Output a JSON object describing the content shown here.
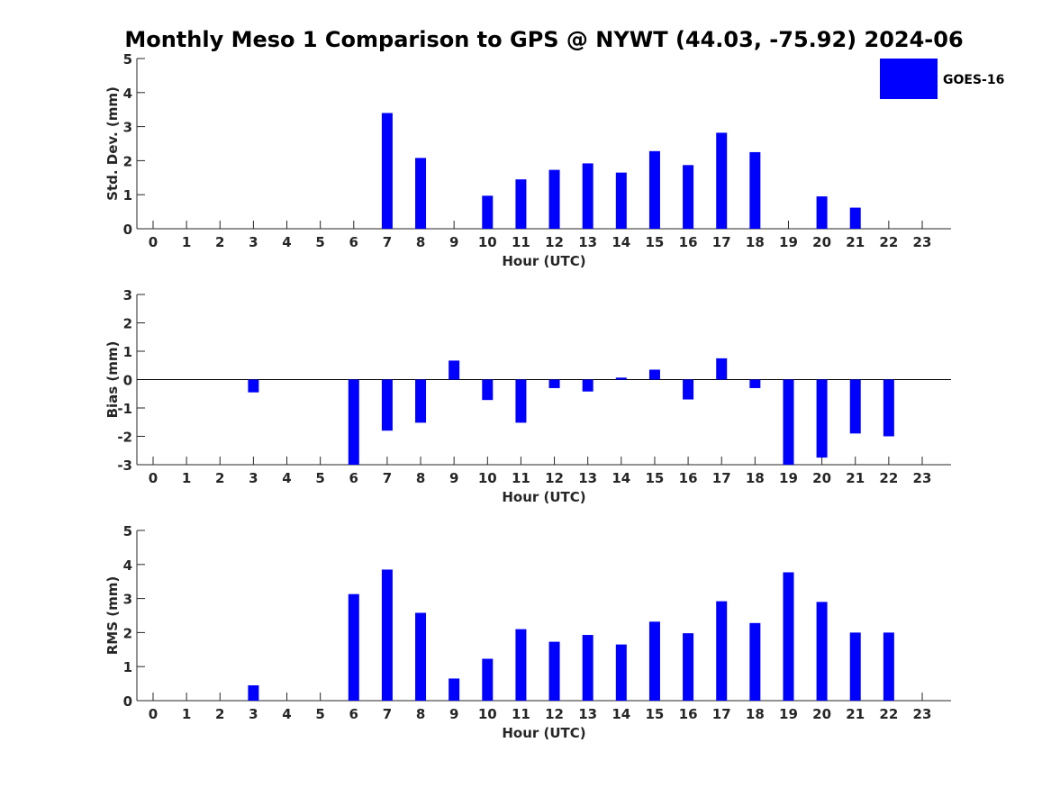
{
  "title": "Monthly Meso 1 Comparison to GPS @ NYWT (44.03, -75.92) 2024-06",
  "legend": {
    "label": "GOES-16",
    "color": "#0000ff",
    "placement": "top-right"
  },
  "chart_data": [
    {
      "type": "bar",
      "ylabel": "Std. Dev. (mm)",
      "xlabel": "Hour (UTC)",
      "ylim": [
        0,
        5
      ],
      "yticks": [
        0,
        1,
        2,
        3,
        4,
        5
      ],
      "categories": [
        "0",
        "1",
        "2",
        "3",
        "4",
        "5",
        "6",
        "7",
        "8",
        "9",
        "10",
        "11",
        "12",
        "13",
        "14",
        "15",
        "16",
        "17",
        "18",
        "19",
        "20",
        "21",
        "22",
        "23"
      ],
      "values": [
        0,
        0,
        0,
        0,
        0,
        0,
        0,
        3.4,
        2.08,
        0,
        0.97,
        1.45,
        1.73,
        1.92,
        1.65,
        2.28,
        1.87,
        2.82,
        2.25,
        0,
        0.95,
        0.62,
        0,
        0
      ],
      "color": "#0000ff",
      "grid": false
    },
    {
      "type": "bar",
      "ylabel": "Bias (mm)",
      "xlabel": "Hour (UTC)",
      "ylim": [
        -3,
        3
      ],
      "yticks": [
        -3,
        -2,
        -1,
        0,
        1,
        2,
        3
      ],
      "categories": [
        "0",
        "1",
        "2",
        "3",
        "4",
        "5",
        "6",
        "7",
        "8",
        "9",
        "10",
        "11",
        "12",
        "13",
        "14",
        "15",
        "16",
        "17",
        "18",
        "19",
        "20",
        "21",
        "22",
        "23"
      ],
      "values": [
        0,
        0,
        0,
        -0.45,
        0,
        0,
        -3.2,
        -1.8,
        -1.52,
        0.67,
        -0.72,
        -1.52,
        -0.3,
        -0.42,
        0.07,
        0.35,
        -0.7,
        0.75,
        -0.3,
        -3.2,
        -2.75,
        -1.9,
        -2.0,
        0
      ],
      "color": "#0000ff",
      "grid": false
    },
    {
      "type": "bar",
      "ylabel": "RMS (mm)",
      "xlabel": "Hour (UTC)",
      "ylim": [
        0,
        5
      ],
      "yticks": [
        0,
        1,
        2,
        3,
        4,
        5
      ],
      "categories": [
        "0",
        "1",
        "2",
        "3",
        "4",
        "5",
        "6",
        "7",
        "8",
        "9",
        "10",
        "11",
        "12",
        "13",
        "14",
        "15",
        "16",
        "17",
        "18",
        "19",
        "20",
        "21",
        "22",
        "23"
      ],
      "values": [
        0,
        0,
        0,
        0.45,
        0,
        0,
        3.13,
        3.85,
        2.58,
        0.65,
        1.23,
        2.1,
        1.73,
        1.93,
        1.65,
        2.32,
        1.98,
        2.92,
        2.28,
        3.77,
        2.9,
        2.0,
        2.0,
        0
      ],
      "color": "#0000ff",
      "grid": false
    }
  ]
}
